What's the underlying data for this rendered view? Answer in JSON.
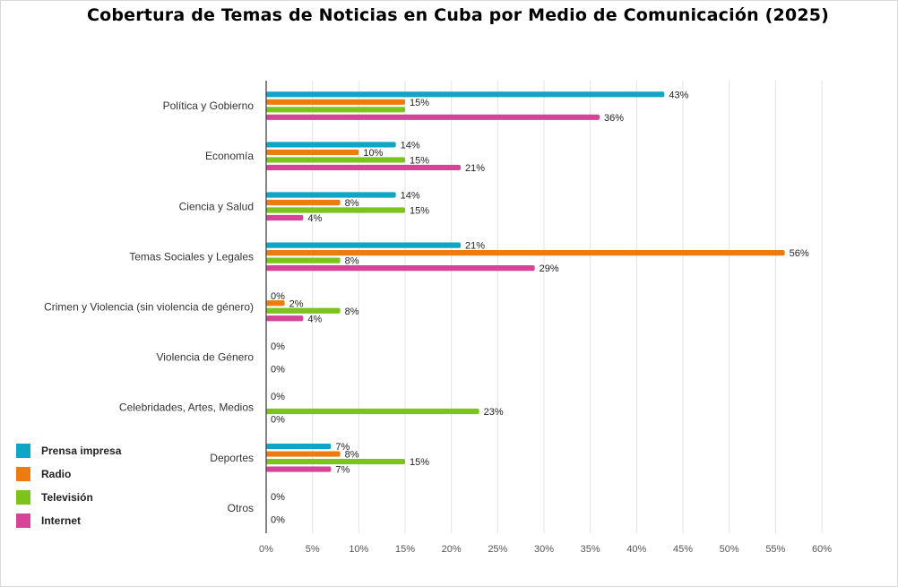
{
  "chart_data": {
    "type": "bar",
    "orientation": "horizontal",
    "title": "Cobertura de Temas de Noticias en Cuba por Medio de Comunicación (2025)",
    "categories": [
      "Política y Gobierno",
      "Economía",
      "Ciencia y Salud",
      "Temas Sociales y Legales",
      "Crimen y Violencia (sin violencia de género)",
      "Violencia de Género",
      "Celebridades, Artes, Medios",
      "Deportes",
      "Otros"
    ],
    "series": [
      {
        "name": "Prensa impresa",
        "color": "#0fa5c4",
        "values": [
          43,
          14,
          14,
          21,
          0,
          0,
          0,
          7,
          0
        ],
        "labels": [
          "43%",
          "14%",
          "14%",
          "21%",
          "0%",
          "0%",
          "0%",
          "7%",
          "0%"
        ]
      },
      {
        "name": "Radio",
        "color": "#ec7c10",
        "values": [
          15,
          10,
          8,
          56,
          2,
          0,
          0,
          8,
          0
        ],
        "labels": [
          "15%",
          "10%",
          "8%",
          "56%",
          "2%",
          "",
          "",
          "8%",
          ""
        ]
      },
      {
        "name": "Televisión",
        "color": "#7cc31b",
        "values": [
          15,
          15,
          15,
          8,
          8,
          0,
          23,
          15,
          0
        ],
        "labels": [
          "",
          "15%",
          "15%",
          "8%",
          "8%",
          "",
          "23%",
          "15%",
          ""
        ]
      },
      {
        "name": "Internet",
        "color": "#d6449a",
        "values": [
          36,
          21,
          4,
          29,
          4,
          0,
          0,
          7,
          0
        ],
        "labels": [
          "36%",
          "21%",
          "4%",
          "29%",
          "4%",
          "0%",
          "0%",
          "7%",
          "0%"
        ]
      }
    ],
    "xlim": [
      0,
      60
    ],
    "xticks": [
      0,
      5,
      10,
      15,
      20,
      25,
      30,
      35,
      40,
      45,
      50,
      55,
      60
    ],
    "xtick_labels": [
      "0%",
      "5%",
      "10%",
      "15%",
      "20%",
      "25%",
      "30%",
      "35%",
      "40%",
      "45%",
      "50%",
      "55%",
      "60%"
    ],
    "grid": true,
    "legend_position": "bottom-left"
  }
}
